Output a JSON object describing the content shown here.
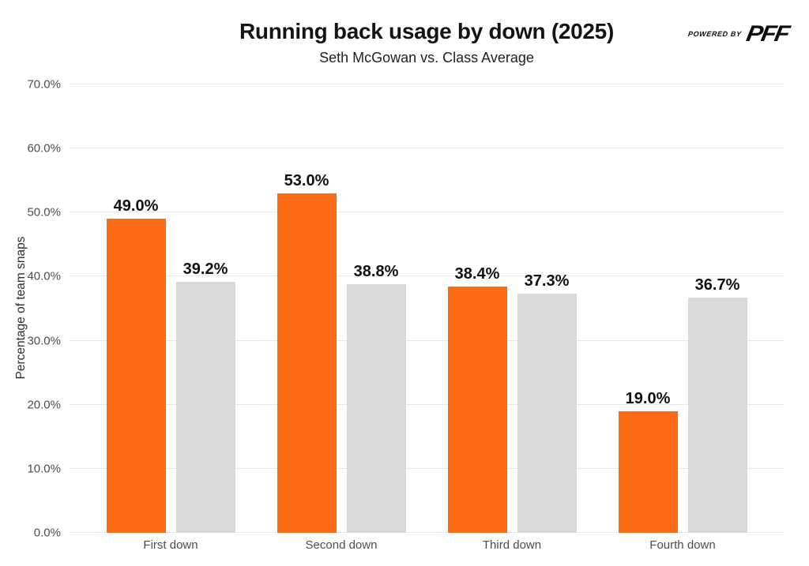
{
  "header": {
    "title": "Running back usage by down (2025)",
    "subtitle": "Seth McGowan vs. Class Average",
    "brand": {
      "powered_by_label": "POWERED BY",
      "brand_name": "PFF"
    }
  },
  "chart_data": {
    "type": "bar",
    "categories": [
      "First down",
      "Second down",
      "Third down",
      "Fourth down"
    ],
    "series": [
      {
        "name": "Seth McGowan",
        "color": "#FA6B16",
        "values": [
          49.0,
          53.0,
          38.4,
          19.0
        ],
        "labels": [
          "49.0%",
          "53.0%",
          "38.4%",
          "19.0%"
        ]
      },
      {
        "name": "Class Average",
        "color": "#D9D9D9",
        "values": [
          39.2,
          38.8,
          37.3,
          36.7
        ],
        "labels": [
          "39.2%",
          "38.8%",
          "37.3%",
          "36.7%"
        ]
      }
    ],
    "title": "Running back usage by down (2025)",
    "subtitle": "Seth McGowan vs. Class Average",
    "xlabel": "",
    "ylabel": "Percentage of team snaps",
    "ylim": [
      0,
      70
    ],
    "ytick_step": 10,
    "ytick_labels": [
      "0.0%",
      "10.0%",
      "20.0%",
      "30.0%",
      "40.0%",
      "50.0%",
      "60.0%",
      "70.0%"
    ],
    "grid": true,
    "gridline_color": "#E8E8E8",
    "legend_position": "none"
  },
  "colors": {
    "accent_orange": "#FA6B16",
    "neutral_gray": "#D9D9D9",
    "label_text": "#111111",
    "axis_text": "#4D4D4D"
  }
}
